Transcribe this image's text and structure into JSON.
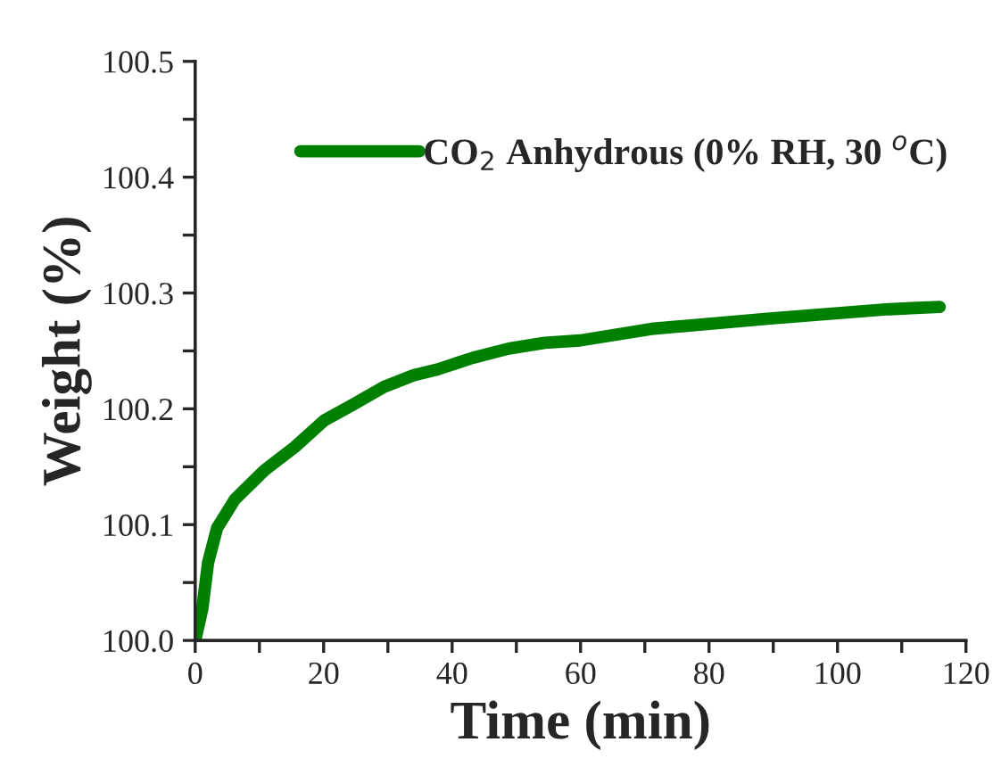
{
  "chart_data": {
    "type": "line",
    "xlabel": "Time (min)",
    "ylabel": "Weight (%)",
    "x": [
      0,
      1.1,
      2.0,
      3.4,
      6.2,
      10.8,
      15.5,
      20.1,
      24.7,
      29.4,
      34.0,
      37.7,
      43.2,
      48.8,
      54.4,
      59.9,
      71.0,
      89.5,
      108,
      115.9
    ],
    "series": [
      {
        "name": "CO$_{2}$ Anhydrous (0% RH, 30 $^{o}$C)",
        "color": "#008000",
        "values": [
          100.0,
          100.027,
          100.067,
          100.097,
          100.122,
          100.147,
          100.167,
          100.19,
          100.204,
          100.219,
          100.229,
          100.234,
          100.244,
          100.252,
          100.257,
          100.259,
          100.269,
          100.278,
          100.286,
          100.288
        ]
      }
    ],
    "xlim": [
      0,
      120
    ],
    "ylim": [
      100.0,
      100.5
    ],
    "xticks": [
      0,
      {
        "value": 10,
        "label": null
      },
      20,
      {
        "value": 30,
        "label": null
      },
      40,
      {
        "value": 50,
        "label": null
      },
      60,
      {
        "value": 70,
        "label": null
      },
      80,
      {
        "value": 90,
        "label": null
      },
      100,
      {
        "value": 110,
        "label": null
      },
      120
    ],
    "yticks": [
      {
        "value": 100.0,
        "label": "100.0"
      },
      {
        "value": 100.05,
        "label": null
      },
      {
        "value": 100.1,
        "label": "100.1"
      },
      {
        "value": 100.15,
        "label": null
      },
      {
        "value": 100.2,
        "label": "100.2"
      },
      {
        "value": 100.25,
        "label": null
      },
      {
        "value": 100.3,
        "label": "100.3"
      },
      {
        "value": 100.35,
        "label": null
      },
      {
        "value": 100.4,
        "label": "100.4"
      },
      {
        "value": 100.45,
        "label": null
      },
      {
        "value": 100.5,
        "label": "100.5"
      }
    ],
    "legend": "top right",
    "grid": false,
    "marker": "none",
    "line_style": "solid"
  }
}
